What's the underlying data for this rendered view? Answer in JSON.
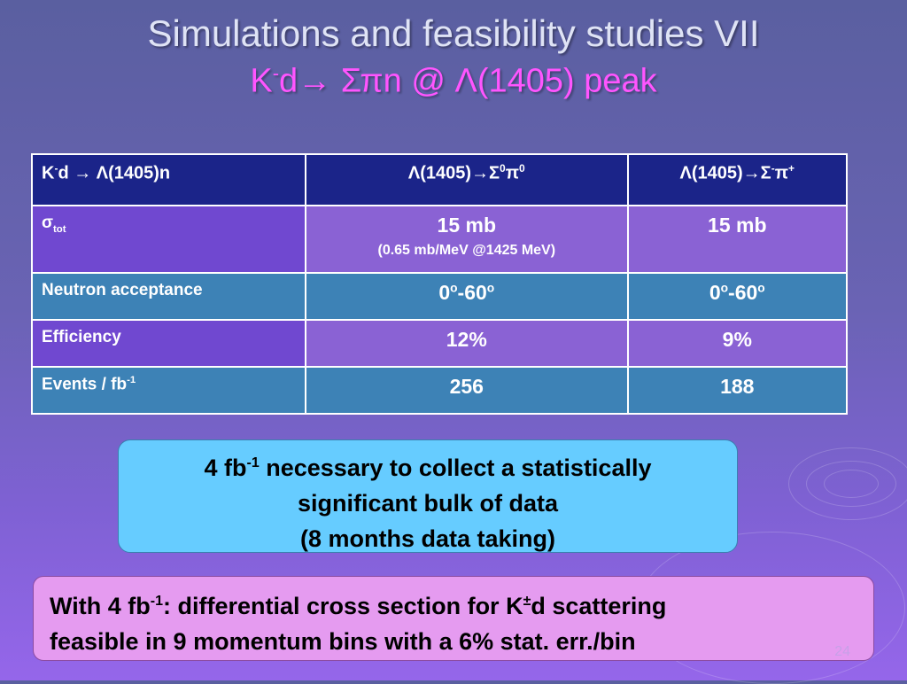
{
  "title": {
    "line1": "Simulations and feasibility studies VII",
    "line2_k": "K",
    "line2_ksup": "-",
    "line2_rest": "d→ Σπn @  Λ(1405) peak"
  },
  "table": {
    "header": {
      "c0_a": "K",
      "c0_sup": "-",
      "c0_b": "d → Λ(1405)n",
      "c1_a": "Λ(1405)→Σ",
      "c1_sup1": "0",
      "c1_b": "π",
      "c1_sup2": "0",
      "c2_a": "Λ(1405)→Σ",
      "c2_sup1": "-",
      "c2_b": "π",
      "c2_sup2": "+"
    },
    "sigma": {
      "label": "σ",
      "label_sub": "tot",
      "c1": "15 mb",
      "c1_note": "(0.65 mb/MeV @1425 MeV)",
      "c2": "15 mb"
    },
    "acceptance": {
      "label": "Neutron acceptance",
      "c1_a": "0",
      "c1_sup1": "o",
      "c1_b": "-60",
      "c1_sup2": "o",
      "c2_a": "0",
      "c2_sup1": "o",
      "c2_b": "-60",
      "c2_sup2": "o"
    },
    "efficiency": {
      "label": "Efficiency",
      "c1": "12%",
      "c2": "9%"
    },
    "events": {
      "label": "Events / fb",
      "label_sup": "-1",
      "c1": "256",
      "c2": "188"
    }
  },
  "box_blue": {
    "l1_a": "4 fb",
    "l1_sup": "-1",
    "l1_b": " necessary to collect a statistically",
    "l2": "significant bulk of data",
    "l3": "(8 months data taking)"
  },
  "box_pink": {
    "l1_a": "With 4 fb",
    "l1_sup": "-1",
    "l1_b": ": differential cross section for K",
    "l1_sup2": "±",
    "l1_c": "d scattering",
    "l2": "feasible in 9 momentum bins with a 6% stat. err./bin"
  },
  "slide_number": "24",
  "colors": {
    "background_top": "#5a5fa0",
    "background_bottom": "#9566ea",
    "title": "#dfe3f5",
    "subtitle": "#ff55ff",
    "table_header": "#1b2489",
    "table_purple": "#8a62d4",
    "table_blue": "#3d82b6",
    "box_blue": "#66ccff",
    "box_pink": "#e59bf0"
  }
}
